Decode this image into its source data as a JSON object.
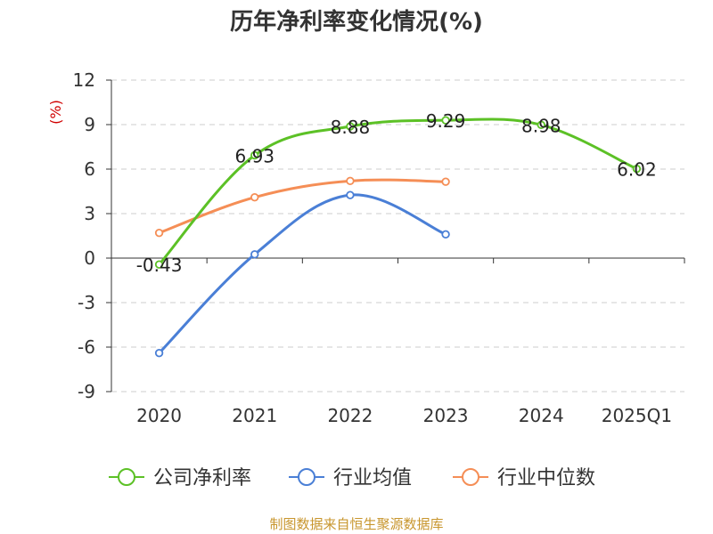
{
  "chart_data": {
    "type": "line",
    "title": "历年净利率变化情况(%)",
    "ylabel": "(%)",
    "xlabel": "",
    "categories": [
      "2020",
      "2021",
      "2022",
      "2023",
      "2024",
      "2025Q1"
    ],
    "ylim": [
      -9,
      12
    ],
    "yticks": [
      12,
      9,
      6,
      3,
      0,
      -3,
      -6,
      -9
    ],
    "ytick_labels": [
      "12",
      "9",
      "6",
      "3",
      "0",
      "-3",
      "-6",
      "-9"
    ],
    "grid": true,
    "legend_position": "bottom",
    "series": [
      {
        "name": "公司净利率",
        "color": "#5cc126",
        "values": [
          -0.43,
          6.93,
          8.88,
          9.29,
          8.98,
          6.02
        ],
        "labels": [
          "-0.43",
          "6.93",
          "8.88",
          "9.29",
          "8.98",
          "6.02"
        ]
      },
      {
        "name": "行业均值",
        "color": "#4a7fd6",
        "values": [
          -6.4,
          0.25,
          4.25,
          1.6,
          null,
          null
        ]
      },
      {
        "name": "行业中位数",
        "color": "#f58e56",
        "values": [
          1.7,
          4.1,
          5.2,
          5.15,
          null,
          null
        ]
      }
    ]
  },
  "footer": {
    "source": "制图数据来自恒生聚源数据库"
  }
}
